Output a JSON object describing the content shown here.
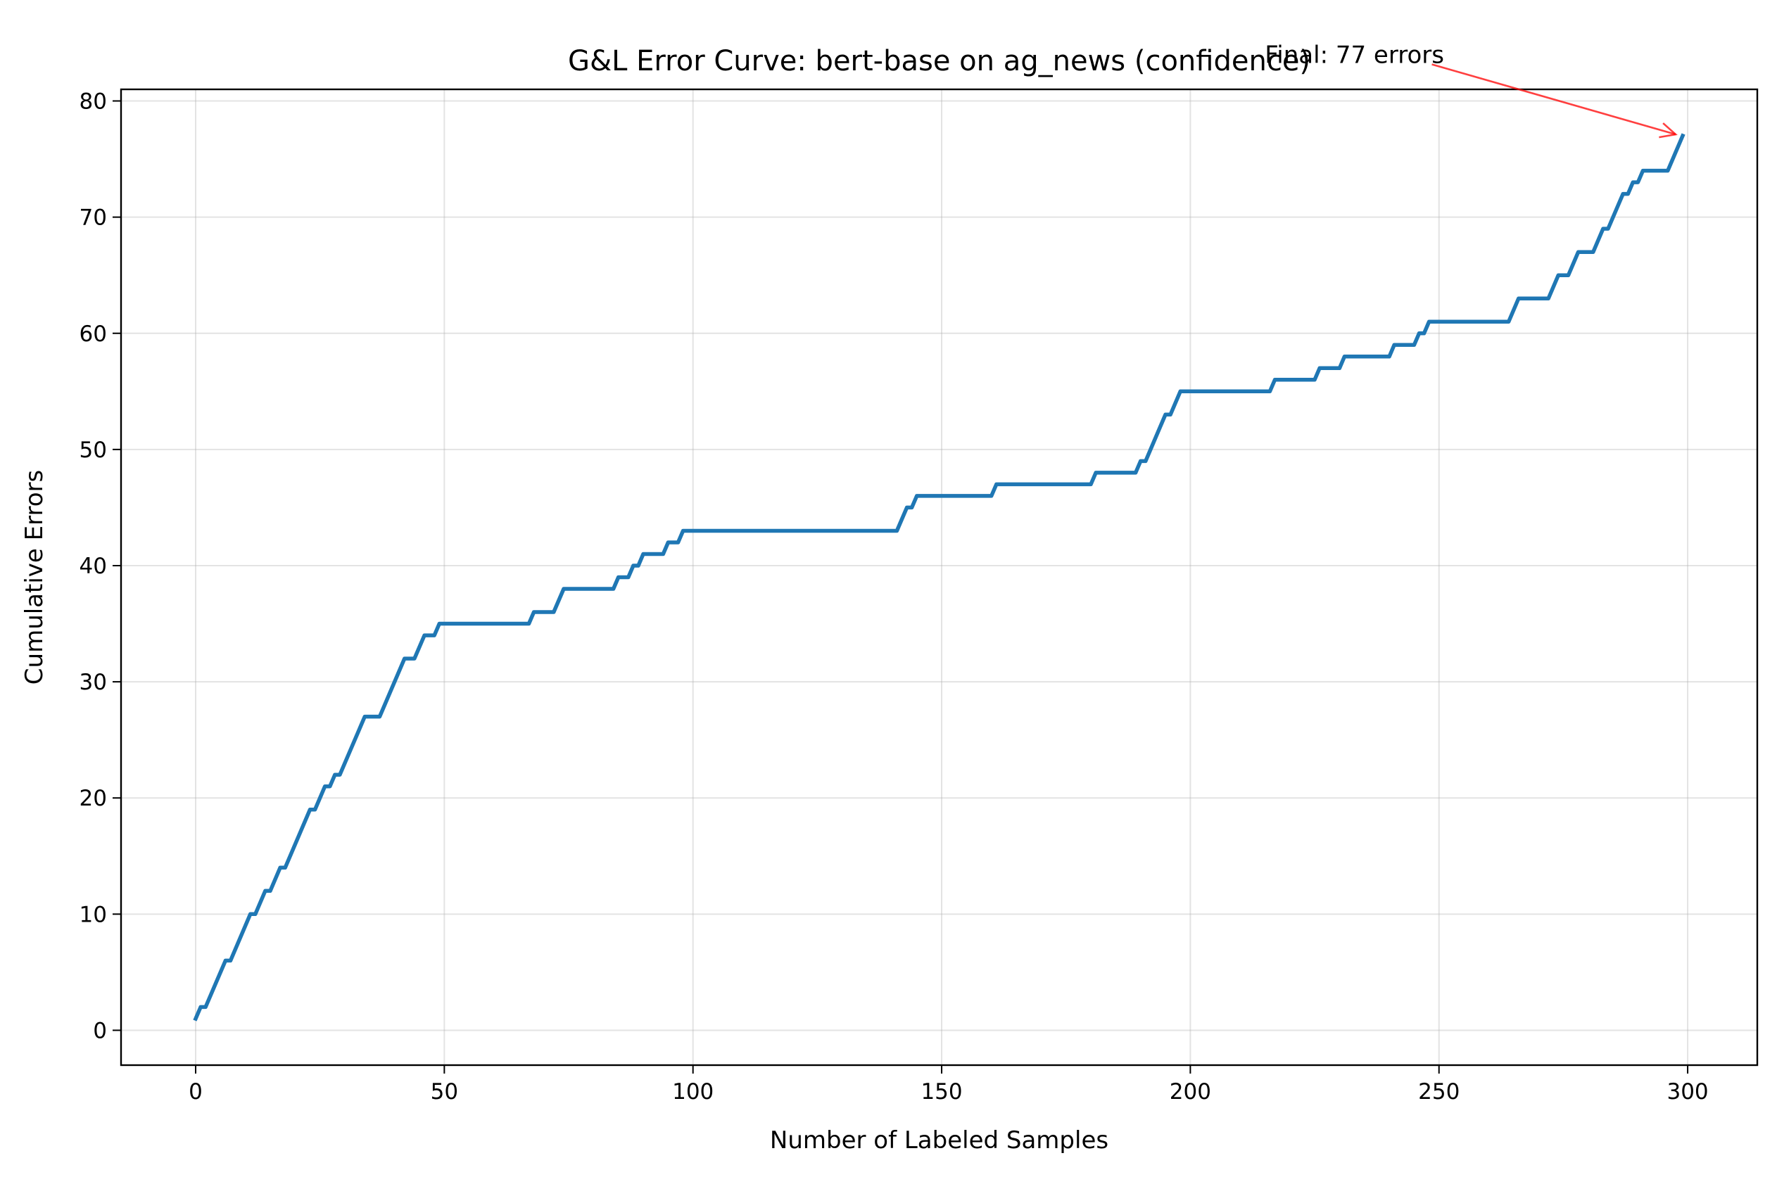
{
  "chart_data": {
    "type": "line",
    "title": "G&L Error Curve: bert-base on ag_news (confidence)",
    "xlabel": "Number of Labeled Samples",
    "ylabel": "Cumulative Errors",
    "xlim": [
      -15,
      314
    ],
    "ylim": [
      -3,
      81
    ],
    "xticks": [
      0,
      50,
      100,
      150,
      200,
      250,
      300
    ],
    "yticks": [
      0,
      10,
      20,
      30,
      40,
      50,
      60,
      70,
      80
    ],
    "grid": true,
    "series": [
      {
        "color": "#1f77b4",
        "points": [
          [
            0,
            1
          ],
          [
            1,
            2
          ],
          [
            2,
            2
          ],
          [
            6,
            6
          ],
          [
            7,
            6
          ],
          [
            11,
            10
          ],
          [
            12,
            10
          ],
          [
            14,
            12
          ],
          [
            15,
            12
          ],
          [
            17,
            14
          ],
          [
            18,
            14
          ],
          [
            23,
            19
          ],
          [
            24,
            19
          ],
          [
            26,
            21
          ],
          [
            27,
            21
          ],
          [
            28,
            22
          ],
          [
            29,
            22
          ],
          [
            34,
            27
          ],
          [
            37,
            27
          ],
          [
            42,
            32
          ],
          [
            44,
            32
          ],
          [
            46,
            34
          ],
          [
            48,
            34
          ],
          [
            49,
            35
          ],
          [
            67,
            35
          ],
          [
            68,
            36
          ],
          [
            72,
            36
          ],
          [
            74,
            38
          ],
          [
            84,
            38
          ],
          [
            85,
            39
          ],
          [
            87,
            39
          ],
          [
            88,
            40
          ],
          [
            89,
            40
          ],
          [
            90,
            41
          ],
          [
            94,
            41
          ],
          [
            95,
            42
          ],
          [
            97,
            42
          ],
          [
            98,
            43
          ],
          [
            141,
            43
          ],
          [
            143,
            45
          ],
          [
            144,
            45
          ],
          [
            145,
            46
          ],
          [
            160,
            46
          ],
          [
            161,
            47
          ],
          [
            180,
            47
          ],
          [
            181,
            48
          ],
          [
            189,
            48
          ],
          [
            190,
            49
          ],
          [
            191,
            49
          ],
          [
            195,
            53
          ],
          [
            196,
            53
          ],
          [
            198,
            55
          ],
          [
            216,
            55
          ],
          [
            217,
            56
          ],
          [
            225,
            56
          ],
          [
            226,
            57
          ],
          [
            230,
            57
          ],
          [
            231,
            58
          ],
          [
            240,
            58
          ],
          [
            241,
            59
          ],
          [
            245,
            59
          ],
          [
            246,
            60
          ],
          [
            247,
            60
          ],
          [
            248,
            61
          ],
          [
            264,
            61
          ],
          [
            266,
            63
          ],
          [
            272,
            63
          ],
          [
            274,
            65
          ],
          [
            276,
            65
          ],
          [
            278,
            67
          ],
          [
            281,
            67
          ],
          [
            283,
            69
          ],
          [
            284,
            69
          ],
          [
            287,
            72
          ],
          [
            288,
            72
          ],
          [
            289,
            73
          ],
          [
            290,
            73
          ],
          [
            291,
            74
          ],
          [
            296,
            74
          ],
          [
            299,
            77
          ]
        ]
      }
    ],
    "annotation": {
      "text": "Final: 77 errors",
      "point": [
        299,
        77
      ],
      "text_anchor": [
        233,
        84
      ],
      "arrow_color": "#ff0000"
    }
  }
}
